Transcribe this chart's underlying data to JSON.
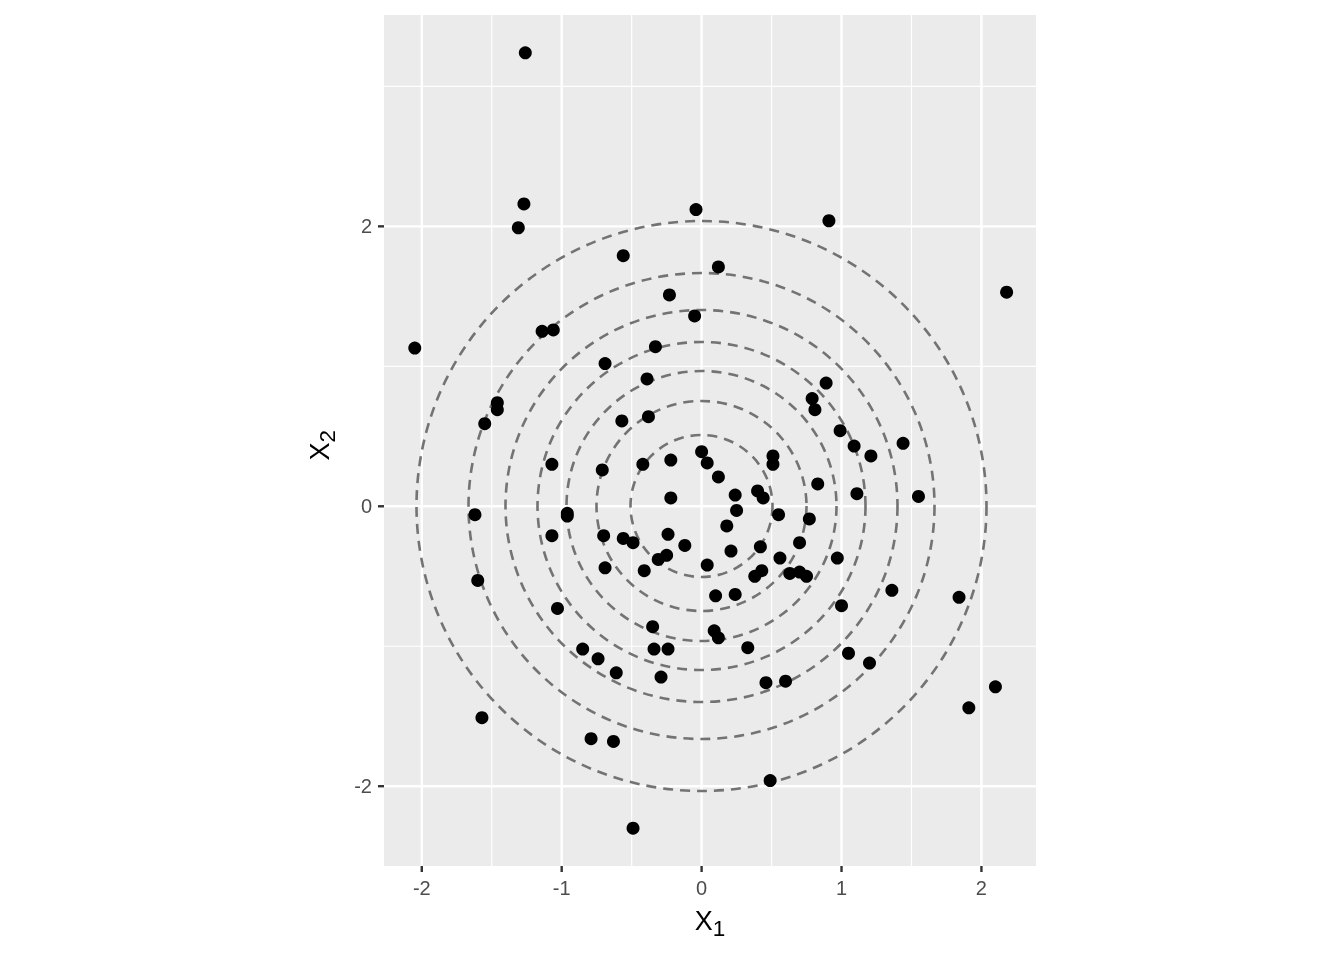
{
  "chart_data": {
    "type": "scatter",
    "xlabel": "X$_{1}$",
    "ylabel": "X$_{2}$",
    "xlim": [
      -2.27,
      2.39
    ],
    "ylim": [
      -2.57,
      3.51
    ],
    "xticks": [
      -2,
      {
        "value": -1.5,
        "label": null
      },
      -1,
      {
        "value": -0.5,
        "label": null
      },
      0,
      {
        "value": 0.5,
        "label": null
      },
      1,
      {
        "value": 1.5,
        "label": null
      },
      2
    ],
    "yticks": [
      -2,
      {
        "value": -1,
        "label": null
      },
      0,
      {
        "value": 1,
        "label": null
      },
      2,
      {
        "value": 3,
        "label": null
      }
    ],
    "grid": true,
    "marker": "circle",
    "series": [
      {
        "color": "#000000",
        "x": [
          -1.26,
          -1.27,
          -1.31,
          -0.04,
          0.91,
          2.18,
          -0.56,
          0.12,
          -0.23,
          -0.05,
          -2.05,
          -1.14,
          -1.06,
          -0.33,
          -0.69,
          -0.39,
          0.89,
          -1.46,
          -1.46,
          -1.55,
          0.79,
          0.81,
          -0.57,
          -0.38,
          0.99,
          1.09,
          1.44,
          1.21,
          0,
          0.04,
          0.51,
          0.51,
          -1.07,
          -0.71,
          -0.42,
          -0.22,
          0.12,
          0.83,
          1.11,
          1.55,
          -0.22,
          0.24,
          0.4,
          0.44,
          0.25,
          0.55,
          0.77,
          -1.62,
          -0.96,
          -0.96,
          -1.07,
          -0.7,
          -0.56,
          -0.49,
          -0.24,
          -0.12,
          -0.25,
          -0.31,
          0.18,
          0.21,
          0.42,
          0.7,
          0.56,
          0.97,
          0.04,
          -0.69,
          -0.41,
          0.43,
          0.38,
          0.63,
          0.7,
          0.75,
          -1.6,
          1.36,
          1.84,
          0.1,
          0.24,
          -1.03,
          1,
          -0.35,
          0.09,
          0.12,
          -0.85,
          -0.34,
          -0.24,
          0.33,
          -0.74,
          -0.61,
          -0.29,
          1.05,
          1.2,
          0.46,
          0.6,
          2.1,
          1.91,
          -1.57,
          -0.79,
          -0.63,
          0.49,
          -0.49
        ],
        "values": [
          3.24,
          2.16,
          1.99,
          2.12,
          2.04,
          1.53,
          1.79,
          1.71,
          1.51,
          1.36,
          1.13,
          1.25,
          1.26,
          1.14,
          1.02,
          0.91,
          0.88,
          0.74,
          0.69,
          0.59,
          0.77,
          0.69,
          0.61,
          0.64,
          0.54,
          0.43,
          0.45,
          0.36,
          0.39,
          0.31,
          0.36,
          0.3,
          0.3,
          0.26,
          0.3,
          0.33,
          0.21,
          0.16,
          0.09,
          0.07,
          0.06,
          0.08,
          0.11,
          0.06,
          -0.03,
          -0.06,
          -0.09,
          -0.06,
          -0.05,
          -0.07,
          -0.21,
          -0.21,
          -0.23,
          -0.26,
          -0.2,
          -0.28,
          -0.35,
          -0.38,
          -0.14,
          -0.32,
          -0.29,
          -0.26,
          -0.37,
          -0.37,
          -0.42,
          -0.44,
          -0.46,
          -0.46,
          -0.5,
          -0.48,
          -0.47,
          -0.5,
          -0.53,
          -0.6,
          -0.65,
          -0.64,
          -0.63,
          -0.73,
          -0.71,
          -0.86,
          -0.89,
          -0.94,
          -1.02,
          -1.02,
          -1.02,
          -1.01,
          -1.09,
          -1.19,
          -1.22,
          -1.05,
          -1.12,
          -1.26,
          -1.25,
          -1.29,
          -1.44,
          -1.51,
          -1.66,
          -1.68,
          -1.96,
          -2.3
        ]
      }
    ]
  }
}
